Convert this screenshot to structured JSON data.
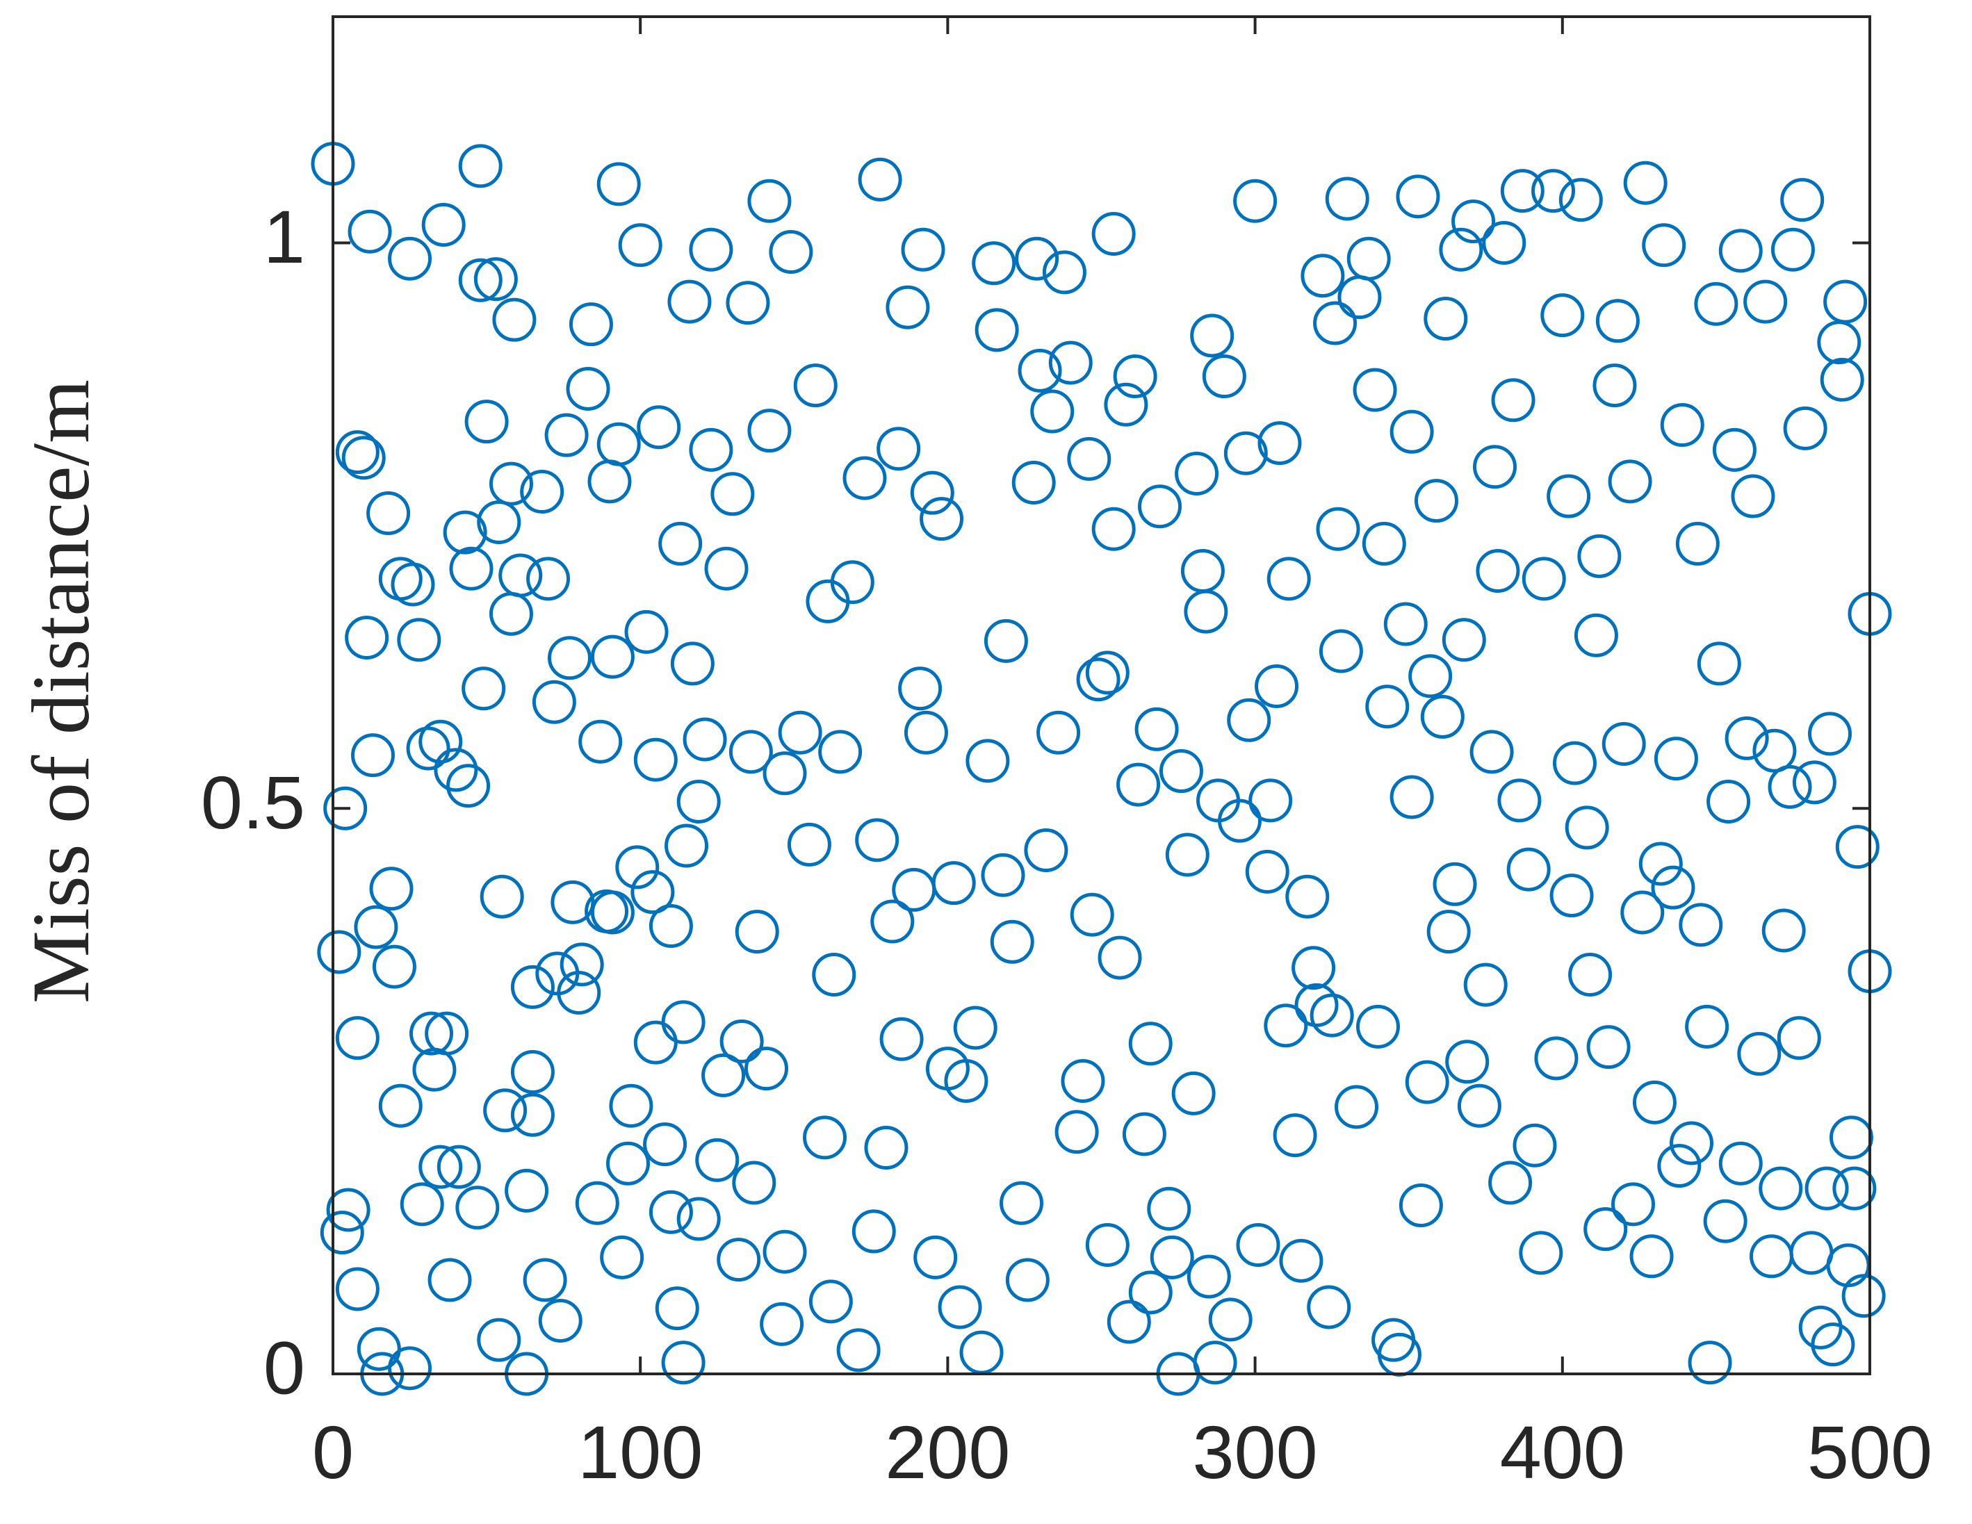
{
  "chart_data": {
    "type": "scatter",
    "y_label": "Miss of distance/m",
    "color": "#0072BD",
    "xlim": [
      0,
      500
    ],
    "ylim": [
      0,
      1.2
    ],
    "xticks": [
      0,
      100,
      200,
      300,
      400,
      500
    ],
    "yticks": [
      0,
      0.5,
      1
    ],
    "x": [
      0,
      2,
      4,
      3,
      5,
      8,
      10,
      8,
      8,
      11,
      12,
      13,
      14,
      15,
      16,
      18,
      19,
      20,
      22,
      22,
      25,
      25,
      26,
      28,
      29,
      31,
      32,
      33,
      36,
      35,
      35,
      37,
      38,
      40,
      41,
      43,
      44,
      45,
      47,
      48,
      48,
      49,
      50,
      53,
      54,
      55,
      54,
      56,
      58,
      58,
      59,
      61,
      63,
      63,
      65,
      65,
      65,
      68,
      69,
      70,
      72,
      73,
      74,
      76,
      77,
      78,
      80,
      81,
      83,
      84,
      86,
      87,
      89,
      90,
      91,
      91,
      93,
      93,
      94,
      96,
      97,
      99,
      100,
      102,
      104,
      105,
      106,
      105,
      108,
      110,
      110,
      112,
      113,
      114,
      114,
      116,
      117,
      115,
      119,
      119,
      121,
      123,
      123,
      125,
      127,
      128,
      130,
      132,
      133,
      135,
      136,
      137,
      138,
      141,
      142,
      142,
      146,
      147,
      147,
      149,
      152,
      155,
      157,
      160,
      161,
      162,
      163,
      165,
      169,
      171,
      173,
      176,
      177,
      178,
      180,
      182,
      184,
      185,
      187,
      189,
      191,
      193,
      192,
      195,
      196,
      198,
      200,
      202,
      204,
      206,
      209,
      211,
      213,
      215,
      216,
      218,
      219,
      221,
      224,
      226,
      228,
      229,
      230,
      232,
      234,
      236,
      238,
      240,
      242,
      244,
      246,
      247,
      249,
      252,
      252,
      254,
      254,
      256,
      258,
      259,
      261,
      262,
      264,
      266,
      266,
      268,
      269,
      272,
      273,
      275,
      276,
      278,
      280,
      281,
      283,
      284,
      285,
      286,
      287,
      288,
      290,
      292,
      295,
      297,
      298,
      300,
      301,
      304,
      305,
      308,
      307,
      310,
      311,
      313,
      315,
      317,
      319,
      320,
      322,
      324,
      325,
      326,
      327,
      328,
      330,
      333,
      334,
      337,
      339,
      340,
      342,
      343,
      345,
      347,
      349,
      351,
      351,
      353,
      354,
      356,
      357,
      359,
      361,
      362,
      363,
      365,
      367,
      368,
      369,
      371,
      373,
      375,
      377,
      378,
      379,
      381,
      383,
      384,
      386,
      387,
      389,
      391,
      393,
      394,
      397,
      398,
      400,
      402,
      403,
      404,
      406,
      408,
      409,
      411,
      412,
      414,
      415,
      417,
      418,
      420,
      422,
      423,
      426,
      427,
      429,
      430,
      432,
      433,
      436,
      437,
      438,
      439,
      442,
      444,
      445,
      447,
      448,
      450,
      451,
      453,
      454,
      456,
      458,
      458,
      460,
      462,
      464,
      466,
      468,
      469,
      471,
      472,
      474,
      475,
      477,
      478,
      479,
      481,
      482,
      484,
      486,
      487,
      488,
      490,
      491,
      492,
      493,
      494,
      495,
      496,
      498,
      500,
      500
    ],
    "values": [
      1.07,
      0.373,
      0.5,
      0.125,
      0.145,
      0.815,
      0.81,
      0.075,
      0.297,
      0.651,
      1.01,
      0.547,
      0.395,
      0.022,
      0.0,
      0.761,
      0.429,
      0.36,
      0.237,
      0.703,
      0.986,
      0.005,
      0.698,
      0.649,
      0.15,
      0.553,
      0.301,
      0.269,
      1.016,
      0.559,
      0.183,
      0.301,
      0.083,
      0.534,
      0.183,
      0.744,
      0.52,
      0.712,
      0.147,
      1.068,
      0.967,
      0.606,
      0.842,
      0.968,
      0.753,
      0.422,
      0.03,
      0.233,
      0.787,
      0.672,
      0.932,
      0.706,
      0.0,
      0.162,
      0.229,
      0.267,
      0.342,
      0.78,
      0.083,
      0.703,
      0.594,
      0.354,
      0.047,
      0.83,
      0.633,
      0.417,
      0.337,
      0.362,
      0.871,
      0.928,
      0.151,
      0.559,
      0.409,
      0.789,
      0.408,
      0.634,
      0.822,
      1.052,
      0.103,
      0.186,
      0.237,
      0.448,
      0.998,
      0.656,
      0.426,
      0.543,
      0.837,
      0.293,
      0.203,
      0.396,
      0.143,
      0.058,
      0.734,
      0.311,
      0.01,
      0.948,
      0.628,
      0.467,
      0.506,
      0.137,
      0.561,
      0.817,
      0.994,
      0.189,
      0.264,
      0.712,
      0.778,
      0.101,
      0.294,
      0.947,
      0.55,
      0.169,
      0.391,
      0.27,
      0.834,
      1.037,
      0.044,
      0.531,
      0.108,
      0.992,
      0.567,
      0.468,
      0.874,
      0.209,
      0.683,
      0.064,
      0.353,
      0.55,
      0.7,
      0.021,
      0.792,
      0.126,
      0.472,
      1.056,
      0.2,
      0.4,
      0.818,
      0.296,
      0.943,
      0.428,
      0.606,
      0.567,
      0.994,
      0.779,
      0.103,
      0.756,
      0.27,
      0.434,
      0.059,
      0.259,
      0.306,
      0.019,
      0.542,
      0.982,
      0.923,
      0.441,
      0.648,
      0.382,
      0.151,
      0.083,
      0.788,
      0.986,
      0.887,
      0.463,
      0.851,
      0.567,
      0.974,
      0.894,
      0.214,
      0.259,
      0.809,
      0.406,
      0.614,
      0.62,
      0.114,
      1.008,
      0.747,
      0.368,
      0.857,
      0.046,
      0.882,
      0.521,
      0.212,
      0.072,
      0.292,
      0.57,
      0.767,
      0.146,
      0.103,
      0.0,
      0.533,
      0.459,
      0.248,
      0.796,
      0.71,
      0.674,
      0.086,
      0.918,
      0.01,
      0.507,
      0.882,
      0.048,
      0.489,
      0.814,
      0.578,
      1.037,
      0.114,
      0.444,
      0.507,
      0.823,
      0.608,
      0.308,
      0.703,
      0.211,
      0.1,
      0.422,
      0.359,
      0.326,
      0.971,
      0.059,
      0.317,
      0.929,
      0.747,
      0.639,
      1.039,
      0.236,
      0.952,
      0.986,
      0.87,
      0.307,
      0.734,
      0.59,
      0.03,
      0.017,
      0.663,
      0.833,
      0.51,
      1.041,
      0.149,
      0.258,
      0.617,
      0.772,
      0.581,
      0.933,
      0.391,
      0.433,
      0.994,
      0.649,
      0.276,
      1.019,
      0.237,
      0.344,
      0.55,
      0.802,
      0.71,
      1.0,
      0.169,
      0.861,
      0.507,
      1.046,
      0.446,
      0.202,
      0.107,
      0.703,
      1.046,
      0.279,
      0.936,
      0.776,
      0.423,
      0.54,
      1.038,
      0.483,
      0.353,
      0.653,
      0.723,
      0.128,
      0.289,
      0.874,
      0.931,
      0.557,
      0.789,
      0.15,
      0.408,
      1.053,
      0.104,
      0.24,
      0.451,
      0.998,
      0.43,
      0.544,
      0.184,
      0.839,
      0.204,
      0.734,
      0.397,
      0.307,
      0.01,
      0.946,
      0.628,
      0.135,
      0.506,
      0.817,
      0.186,
      0.993,
      0.562,
      0.776,
      0.283,
      0.948,
      0.104,
      0.551,
      0.164,
      0.392,
      0.519,
      0.994,
      0.297,
      1.038,
      0.836,
      0.107,
      0.523,
      0.041,
      0.164,
      0.566,
      0.026,
      0.912,
      0.879,
      0.948,
      0.096,
      0.209,
      0.164,
      0.466,
      0.069,
      0.672,
      0.356
    ]
  }
}
